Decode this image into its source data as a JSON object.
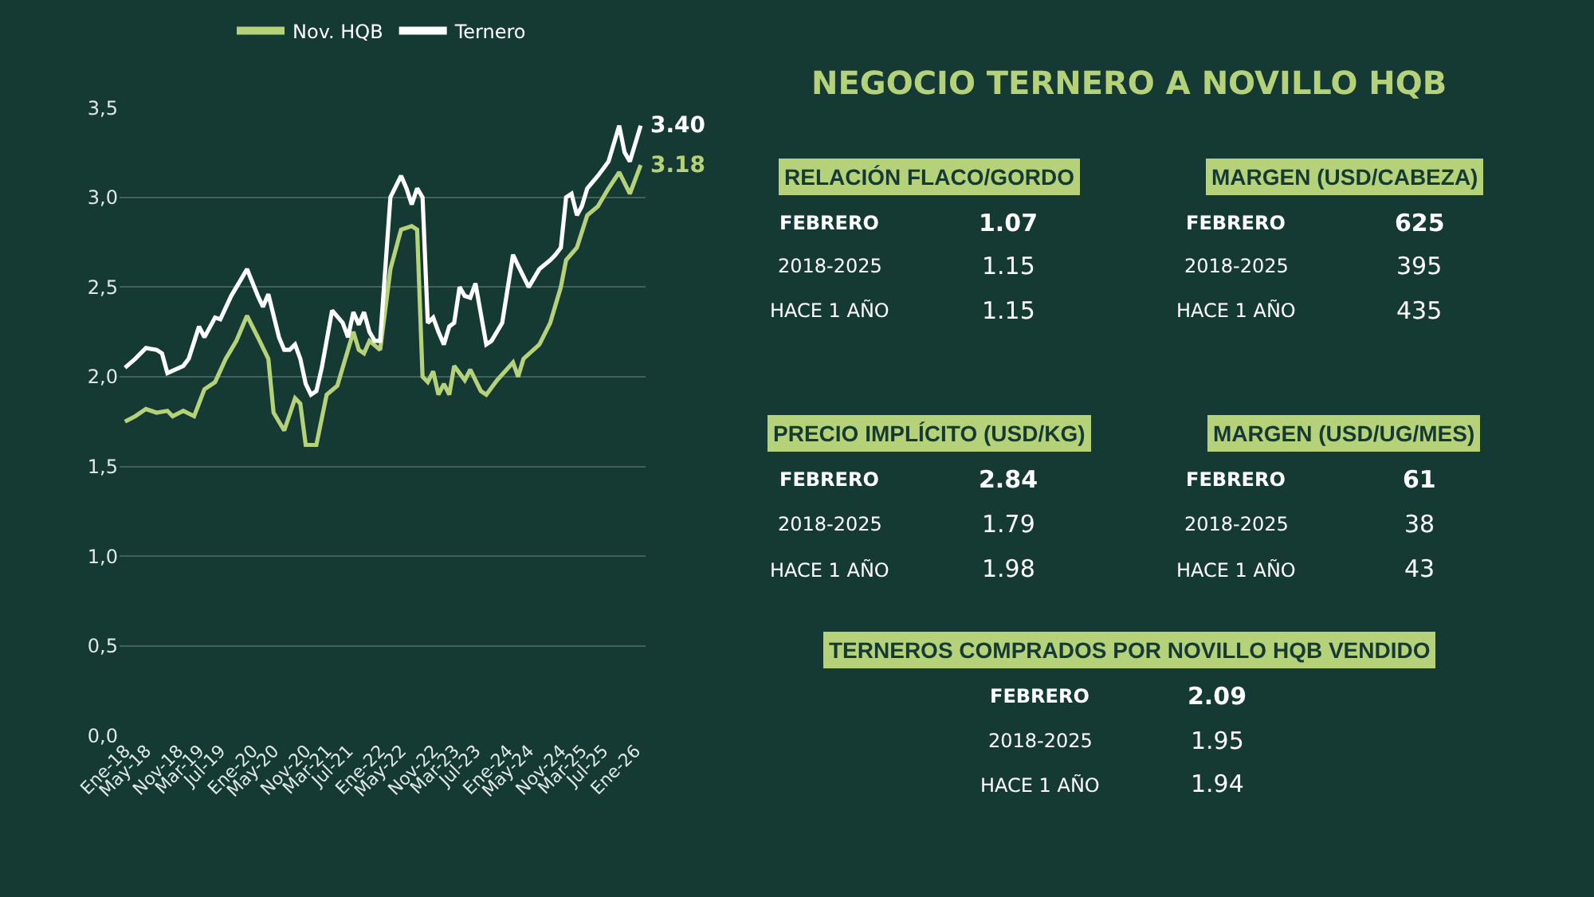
{
  "chart_data": [
    {
      "type": "line",
      "legend": "top",
      "grid": "y",
      "line_style": "solid",
      "xlim": [
        "2017-12",
        "2026-03"
      ],
      "ylim": [
        0,
        3.5
      ],
      "yticks": [
        {
          "value": 0,
          "label": "0,0"
        },
        {
          "value": 0.5,
          "label": "0,5"
        },
        {
          "value": 1,
          "label": "1,0"
        },
        {
          "value": 1.5,
          "label": "1,5"
        },
        {
          "value": 2,
          "label": "2,0"
        },
        {
          "value": 2.5,
          "label": "2,5"
        },
        {
          "value": 3,
          "label": "3,0"
        },
        {
          "value": 3.5,
          "label": "3,5"
        }
      ],
      "xticks": [
        {
          "value": "2018-01",
          "label": "Ene-18"
        },
        {
          "value": "2018-05",
          "label": "May-18"
        },
        {
          "value": "2018-11",
          "label": "Nov-18"
        },
        {
          "value": "2019-03",
          "label": "Mar-19"
        },
        {
          "value": "2019-07",
          "label": "Jul-19"
        },
        {
          "value": "2020-01",
          "label": "Ene-20"
        },
        {
          "value": "2020-05",
          "label": "May-20"
        },
        {
          "value": "2020-11",
          "label": "Nov-20"
        },
        {
          "value": "2021-03",
          "label": "Mar-21"
        },
        {
          "value": "2021-07",
          "label": "Jul-21"
        },
        {
          "value": "2022-01",
          "label": "Ene-22"
        },
        {
          "value": "2022-05",
          "label": "May-22"
        },
        {
          "value": "2022-11",
          "label": "Nov-22"
        },
        {
          "value": "2023-03",
          "label": "Mar-23"
        },
        {
          "value": "2023-07",
          "label": "Jul-23"
        },
        {
          "value": "2024-01",
          "label": "Ene-24"
        },
        {
          "value": "2024-05",
          "label": "May-24"
        },
        {
          "value": "2024-11",
          "label": "Nov-24"
        },
        {
          "value": "2025-03",
          "label": "Mar-25"
        },
        {
          "value": "2025-07",
          "label": "Jul-25"
        },
        {
          "value": "2026-01",
          "label": "Ene-26"
        }
      ],
      "series": [
        {
          "name": "Nov. HQB",
          "color": "#b5d27a",
          "x": [
            "2018-01",
            "2018-03",
            "2018-05",
            "2018-07",
            "2018-09",
            "2018-10",
            "2018-12",
            "2019-02",
            "2019-04",
            "2019-06",
            "2019-08",
            "2019-10",
            "2019-12",
            "2020-02",
            "2020-04",
            "2020-05",
            "2020-07",
            "2020-09",
            "2020-10",
            "2020-11",
            "2021-01",
            "2021-03",
            "2021-05",
            "2021-07",
            "2021-08",
            "2021-09",
            "2021-10",
            "2021-11",
            "2022-01",
            "2022-03",
            "2022-05",
            "2022-07",
            "2022-08",
            "2022-09",
            "2022-10",
            "2022-11",
            "2022-12",
            "2023-01",
            "2023-02",
            "2023-03",
            "2023-05",
            "2023-06",
            "2023-08",
            "2023-09",
            "2023-11",
            "2024-02",
            "2024-03",
            "2024-04",
            "2024-07",
            "2024-09",
            "2024-11",
            "2024-12",
            "2025-02",
            "2025-04",
            "2025-06",
            "2025-08",
            "2025-10",
            "2025-12",
            "2026-02"
          ],
          "values": [
            1.75,
            1.78,
            1.82,
            1.8,
            1.81,
            1.78,
            1.81,
            1.78,
            1.93,
            1.97,
            2.1,
            2.2,
            2.34,
            2.22,
            2.1,
            1.8,
            1.7,
            1.88,
            1.85,
            1.62,
            1.62,
            1.9,
            1.95,
            2.15,
            2.25,
            2.15,
            2.13,
            2.2,
            2.15,
            2.6,
            2.82,
            2.84,
            2.82,
            2.0,
            1.97,
            2.03,
            1.9,
            1.96,
            1.9,
            2.06,
            1.98,
            2.04,
            1.92,
            1.9,
            1.98,
            2.08,
            2.0,
            2.1,
            2.18,
            2.3,
            2.5,
            2.65,
            2.72,
            2.9,
            2.95,
            3.05,
            3.14,
            3.02,
            3.18
          ]
        },
        {
          "name": "Ternero",
          "color": "#ffffff",
          "x": [
            "2018-01",
            "2018-03",
            "2018-05",
            "2018-07",
            "2018-08",
            "2018-09",
            "2018-12",
            "2019-01",
            "2019-03",
            "2019-04",
            "2019-06",
            "2019-07",
            "2019-09",
            "2019-11",
            "2019-12",
            "2020-02",
            "2020-03",
            "2020-04",
            "2020-06",
            "2020-07",
            "2020-08",
            "2020-09",
            "2020-10",
            "2020-11",
            "2020-12",
            "2021-01",
            "2021-02",
            "2021-04",
            "2021-06",
            "2021-07",
            "2021-08",
            "2021-09",
            "2021-10",
            "2021-11",
            "2021-12",
            "2022-01",
            "2022-03",
            "2022-05",
            "2022-06",
            "2022-07",
            "2022-08",
            "2022-09",
            "2022-10",
            "2022-11",
            "2022-12",
            "2023-01",
            "2023-02",
            "2023-03",
            "2023-04",
            "2023-05",
            "2023-06",
            "2023-07",
            "2023-08",
            "2023-09",
            "2023-10",
            "2023-12",
            "2024-02",
            "2024-03",
            "2024-05",
            "2024-07",
            "2024-09",
            "2024-10",
            "2024-11",
            "2024-12",
            "2025-01",
            "2025-02",
            "2025-03",
            "2025-04",
            "2025-06",
            "2025-08",
            "2025-10",
            "2025-11",
            "2025-12",
            "2026-01",
            "2026-02"
          ],
          "values": [
            2.05,
            2.1,
            2.16,
            2.15,
            2.13,
            2.02,
            2.06,
            2.1,
            2.28,
            2.22,
            2.33,
            2.32,
            2.45,
            2.55,
            2.6,
            2.45,
            2.39,
            2.46,
            2.22,
            2.15,
            2.15,
            2.18,
            2.1,
            1.96,
            1.9,
            1.92,
            2.05,
            2.37,
            2.3,
            2.22,
            2.36,
            2.29,
            2.36,
            2.25,
            2.2,
            2.2,
            3.0,
            3.12,
            3.05,
            2.96,
            3.05,
            3.0,
            2.3,
            2.33,
            2.25,
            2.18,
            2.28,
            2.3,
            2.5,
            2.45,
            2.44,
            2.52,
            2.35,
            2.18,
            2.2,
            2.3,
            2.68,
            2.62,
            2.5,
            2.6,
            2.65,
            2.68,
            2.72,
            3.0,
            3.02,
            2.9,
            2.95,
            3.05,
            3.12,
            3.2,
            3.4,
            3.25,
            3.2,
            3.3,
            3.4
          ]
        }
      ],
      "annotations": [
        {
          "text": "3.40",
          "x": "2026-02",
          "y": 3.4
        },
        {
          "text": "3.18",
          "x": "2026-02",
          "y": 3.18
        }
      ]
    },
    {
      "type": "other",
      "title": "NEGOCIO TERNERO A NOVILLO HQB",
      "annotations": [
        "RELACIÓN FLACO/GORDO",
        "FEBRERO",
        "1.07",
        "2018-2025",
        "1.15",
        "HACE 1 AÑO",
        "1.15",
        "MARGEN (USD/CABEZA)",
        "FEBRERO",
        "625",
        "2018-2025",
        "395",
        "HACE 1 AÑO",
        "435",
        "PRECIO IMPLÍCITO (USD/KG)",
        "FEBRERO",
        "2.84",
        "2018-2025",
        "1.79",
        "HACE 1 AÑO",
        "1.98",
        "MARGEN (USD/UG/MES)",
        "FEBRERO",
        "61",
        "2018-2025",
        "38",
        "HACE 1 AÑO",
        "43",
        "TERNEROS COMPRADOS POR NOVILLO HQB VENDIDO",
        "FEBRERO",
        "2.09",
        "2018-2025",
        "1.95",
        "HACE 1 AÑO",
        "1.94"
      ]
    }
  ]
}
